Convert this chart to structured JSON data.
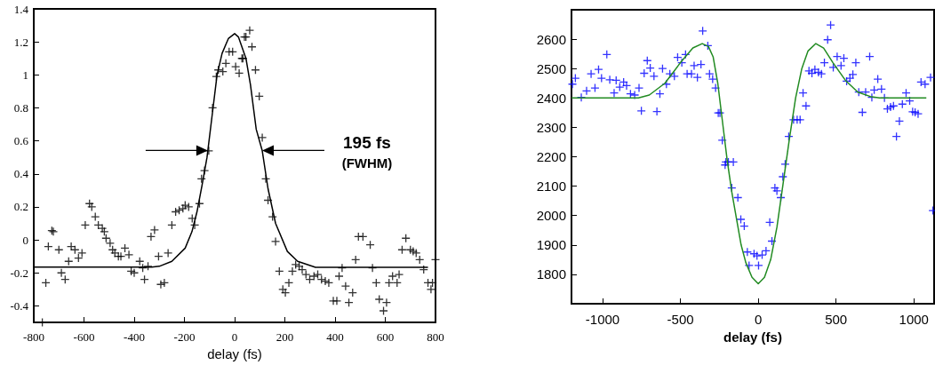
{
  "chart_data": [
    {
      "type": "scatter",
      "xlabel": "delay (fs)",
      "xlim": [
        -800,
        800
      ],
      "xticks": [
        -800,
        -600,
        -400,
        -200,
        0,
        200,
        400,
        600,
        800
      ],
      "ylim": [
        -0.5,
        1.4
      ],
      "yticks": [
        -0.4,
        -0.2,
        0,
        0.2,
        0.4,
        0.6,
        0.8,
        1,
        1.2,
        1.4
      ],
      "annotations": [
        "195 fs\n(FWHM)"
      ],
      "series": [
        {
          "type": "scatter",
          "marker": "cross",
          "color": "#000000",
          "x": [
            -766,
            -752,
            -742,
            -728,
            -722,
            -700,
            -690,
            -675,
            -661,
            -651,
            -636,
            -622,
            -608,
            -595,
            -578,
            -569,
            -555,
            -543,
            -527,
            -519,
            -512,
            -496,
            -486,
            -477,
            -463,
            -453,
            -437,
            -421,
            -412,
            -400,
            -378,
            -366,
            -359,
            -345,
            -333,
            -319,
            -303,
            -294,
            -280,
            -265,
            -250,
            -235,
            -221,
            -206,
            -197,
            -183,
            -169,
            -159,
            -140,
            -132,
            -120,
            -103,
            -88,
            -73,
            -65,
            -47,
            -35,
            -22,
            -8,
            4,
            18,
            29,
            33,
            39,
            45,
            60,
            69,
            83,
            98,
            110,
            124,
            133,
            151,
            163,
            178,
            192,
            202,
            216,
            230,
            243,
            257,
            269,
            284,
            299,
            316,
            331,
            346,
            361,
            375,
            393,
            407,
            416,
            428,
            442,
            455,
            470,
            482,
            493,
            511,
            540,
            549,
            564,
            576,
            593,
            605,
            615,
            629,
            647,
            655,
            667,
            682,
            700,
            711,
            723,
            737,
            753,
            770,
            782,
            788,
            800
          ],
          "values": [
            -0.5,
            -0.26,
            -0.04,
            0.056,
            0.05,
            -0.06,
            -0.2,
            -0.24,
            -0.13,
            -0.04,
            -0.06,
            -0.11,
            -0.08,
            0.09,
            0.22,
            0.2,
            0.14,
            0.09,
            0.07,
            0.05,
            0.01,
            -0.02,
            -0.06,
            -0.08,
            -0.1,
            -0.1,
            -0.05,
            -0.09,
            -0.19,
            -0.2,
            -0.13,
            -0.17,
            -0.24,
            -0.16,
            0.02,
            0.06,
            -0.1,
            -0.27,
            -0.26,
            -0.08,
            0.09,
            0.17,
            0.18,
            0.19,
            0.21,
            0.2,
            0.13,
            0.09,
            0.22,
            0.37,
            0.42,
            0.54,
            0.8,
            0.99,
            1.03,
            1.02,
            1.07,
            1.14,
            1.14,
            1.05,
            1.01,
            1.1,
            1.1,
            1.23,
            1.23,
            1.27,
            1.17,
            1.03,
            0.87,
            0.62,
            0.37,
            0.24,
            0.14,
            -0.01,
            -0.19,
            -0.3,
            -0.32,
            -0.26,
            -0.19,
            -0.15,
            -0.16,
            -0.18,
            -0.21,
            -0.24,
            -0.22,
            -0.21,
            -0.24,
            -0.25,
            -0.26,
            -0.37,
            -0.37,
            -0.22,
            -0.17,
            -0.28,
            -0.38,
            -0.32,
            -0.12,
            0.02,
            0.02,
            -0.03,
            -0.17,
            -0.26,
            -0.36,
            -0.43,
            -0.38,
            -0.26,
            -0.22,
            -0.26,
            -0.21,
            -0.06,
            0.01,
            -0.06,
            -0.07,
            -0.08,
            -0.12,
            -0.18,
            -0.26,
            -0.3,
            -0.26,
            -0.12
          ]
        },
        {
          "type": "line",
          "marker": "none",
          "color": "#000000",
          "x": [
            -800,
            -330,
            -300,
            -250,
            -197,
            -170,
            -150,
            -130,
            -110,
            -90,
            -70,
            -50,
            -25,
            0,
            15,
            45,
            63,
            86,
            110,
            133,
            163,
            210,
            251,
            322,
            770
          ],
          "values": [
            -0.165,
            -0.165,
            -0.16,
            -0.13,
            -0.05,
            0.05,
            0.17,
            0.33,
            0.5,
            0.75,
            1.0,
            1.13,
            1.22,
            1.25,
            1.23,
            1.1,
            0.94,
            0.67,
            0.54,
            0.31,
            0.1,
            -0.07,
            -0.13,
            -0.166,
            -0.166
          ]
        }
      ]
    },
    {
      "type": "scatter",
      "xlabel": "delay (fs)",
      "xlim": [
        -1200,
        1130
      ],
      "xticks": [
        -1000,
        -500,
        0,
        500,
        1000
      ],
      "ylim": [
        1700,
        2700
      ],
      "yticks": [
        1800,
        1900,
        2000,
        2100,
        2200,
        2300,
        2400,
        2500,
        2600
      ],
      "series": [
        {
          "type": "scatter",
          "marker": "cross",
          "color": "#0000ff",
          "x": [
            -1194,
            -1175,
            -1137,
            -1103,
            -1074,
            -1049,
            -1026,
            -1007,
            -973,
            -954,
            -926,
            -913,
            -890,
            -865,
            -846,
            -821,
            -794,
            -766,
            -751,
            -733,
            -713,
            -694,
            -670,
            -651,
            -632,
            -615,
            -590,
            -568,
            -539,
            -518,
            -491,
            -467,
            -457,
            -429,
            -412,
            -391,
            -368,
            -357,
            -324,
            -313,
            -293,
            -274,
            -257,
            -246,
            -231,
            -213,
            -208,
            -192,
            -170,
            -160,
            -131,
            -112,
            -90,
            -70,
            -59,
            -27,
            -8,
            2,
            25,
            50,
            74,
            88,
            107,
            120,
            145,
            158,
            173,
            196,
            227,
            250,
            269,
            288,
            307,
            326,
            345,
            364,
            387,
            406,
            425,
            446,
            465,
            482,
            507,
            532,
            550,
            568,
            589,
            608,
            627,
            646,
            669,
            690,
            716,
            730,
            745,
            768,
            792,
            811,
            830,
            850,
            869,
            888,
            907,
            926,
            950,
            973,
            992,
            1008,
            1027,
            1046,
            1072,
            1107,
            1122
          ],
          "values": [
            2447,
            2467,
            2402,
            2424,
            2482,
            2434,
            2497,
            2467,
            2548,
            2462,
            2417,
            2460,
            2437,
            2454,
            2442,
            2414,
            2410,
            2434,
            2356,
            2484,
            2527,
            2502,
            2474,
            2354,
            2414,
            2500,
            2447,
            2482,
            2474,
            2538,
            2520,
            2548,
            2482,
            2482,
            2510,
            2470,
            2514,
            2628,
            2578,
            2482,
            2464,
            2434,
            2349,
            2349,
            2256,
            2172,
            2182,
            2182,
            2094,
            2182,
            2061,
            1987,
            1964,
            1876,
            1830,
            1870,
            1863,
            1830,
            1866,
            1880,
            1977,
            1913,
            2094,
            2084,
            2061,
            2132,
            2175,
            2269,
            2326,
            2326,
            2326,
            2417,
            2373,
            2492,
            2484,
            2497,
            2487,
            2482,
            2520,
            2598,
            2648,
            2504,
            2541,
            2510,
            2535,
            2457,
            2467,
            2480,
            2520,
            2420,
            2351,
            2420,
            2541,
            2402,
            2427,
            2464,
            2430,
            2400,
            2363,
            2369,
            2373,
            2269,
            2321,
            2379,
            2417,
            2390,
            2353,
            2351,
            2346,
            2454,
            2447,
            2470,
            2017
          ]
        },
        {
          "type": "line",
          "marker": "none",
          "color": "#228b22",
          "x": [
            -1200,
            -770,
            -700,
            -600,
            -500,
            -420,
            -360,
            -320,
            -290,
            -260,
            -230,
            -200,
            -170,
            -140,
            -110,
            -80,
            -40,
            0,
            40,
            80,
            120,
            160,
            200,
            240,
            280,
            320,
            370,
            420,
            480,
            560,
            640,
            720,
            780,
            1080
          ],
          "values": [
            2400,
            2400,
            2410,
            2450,
            2520,
            2570,
            2585,
            2575,
            2540,
            2450,
            2320,
            2190,
            2080,
            1990,
            1900,
            1840,
            1790,
            1768,
            1790,
            1850,
            1960,
            2110,
            2260,
            2400,
            2500,
            2560,
            2585,
            2570,
            2520,
            2460,
            2420,
            2405,
            2400,
            2400
          ]
        }
      ]
    }
  ]
}
